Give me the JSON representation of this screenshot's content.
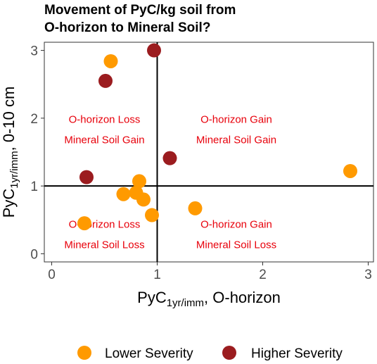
{
  "chart_data": {
    "type": "scatter",
    "title_lines": [
      "Movement of PyC/kg soil from",
      "O-horizon to Mineral Soil?"
    ],
    "xlabel": {
      "main": "PyC",
      "sub": "1yr/imm",
      "rest": ", O-horizon"
    },
    "ylabel": {
      "main": "PyC",
      "sub": "1yr/imm",
      "rest": ", 0-10 cm"
    },
    "xlim": [
      -0.07,
      3.05
    ],
    "ylim": [
      -0.12,
      3.12
    ],
    "xticks": [
      0,
      1,
      2,
      3
    ],
    "yticks": [
      0,
      1,
      2,
      3
    ],
    "reference_lines": {
      "x": 1,
      "y": 1
    },
    "quadrant_labels": [
      {
        "lines": [
          "O-horizon Loss",
          "Mineral Soil Gain"
        ],
        "x": 0.5,
        "y": 1.85
      },
      {
        "lines": [
          "O-horizon Gain",
          "Mineral Soil Gain"
        ],
        "x": 1.75,
        "y": 1.85
      },
      {
        "lines": [
          "O-horizon Loss",
          "Mineral Soil Loss"
        ],
        "x": 0.5,
        "y": 0.3
      },
      {
        "lines": [
          "O-horizon Gain",
          "Mineral Soil Loss"
        ],
        "x": 1.75,
        "y": 0.3
      }
    ],
    "series": [
      {
        "name": "Lower Severity",
        "color": "#ff9a00",
        "points": [
          {
            "x": 0.56,
            "y": 2.84
          },
          {
            "x": 0.83,
            "y": 1.07
          },
          {
            "x": 0.68,
            "y": 0.88
          },
          {
            "x": 0.8,
            "y": 0.9
          },
          {
            "x": 0.87,
            "y": 0.8
          },
          {
            "x": 0.95,
            "y": 0.57
          },
          {
            "x": 1.36,
            "y": 0.67
          },
          {
            "x": 0.31,
            "y": 0.45
          },
          {
            "x": 2.83,
            "y": 1.22
          }
        ]
      },
      {
        "name": "Higher Severity",
        "color": "#9b1c1f",
        "points": [
          {
            "x": 0.97,
            "y": 3.0
          },
          {
            "x": 0.51,
            "y": 2.55
          },
          {
            "x": 1.12,
            "y": 1.41
          },
          {
            "x": 0.33,
            "y": 1.13
          }
        ]
      }
    ],
    "legend_position": "bottom",
    "grid": false
  }
}
